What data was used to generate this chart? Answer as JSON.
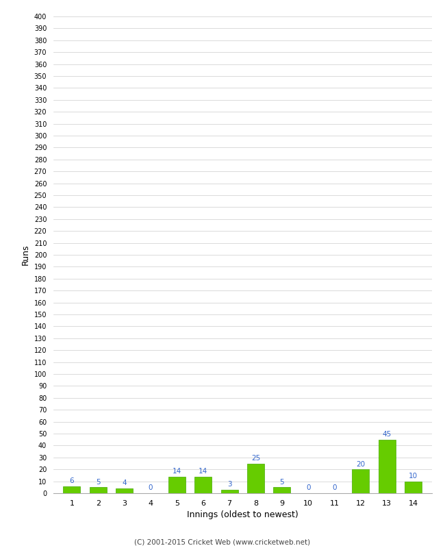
{
  "xlabel": "Innings (oldest to newest)",
  "ylabel": "Runs",
  "categories": [
    1,
    2,
    3,
    4,
    5,
    6,
    7,
    8,
    9,
    10,
    11,
    12,
    13,
    14
  ],
  "values": [
    6,
    5,
    4,
    0,
    14,
    14,
    3,
    25,
    5,
    0,
    0,
    20,
    45,
    10
  ],
  "bar_color": "#66cc00",
  "bar_edge_color": "#44aa00",
  "label_color": "#3366cc",
  "label_fontsize": 7.5,
  "ylim": [
    0,
    400
  ],
  "background_color": "#ffffff",
  "grid_color": "#cccccc",
  "footer": "(C) 2001-2015 Cricket Web (www.cricketweb.net)"
}
